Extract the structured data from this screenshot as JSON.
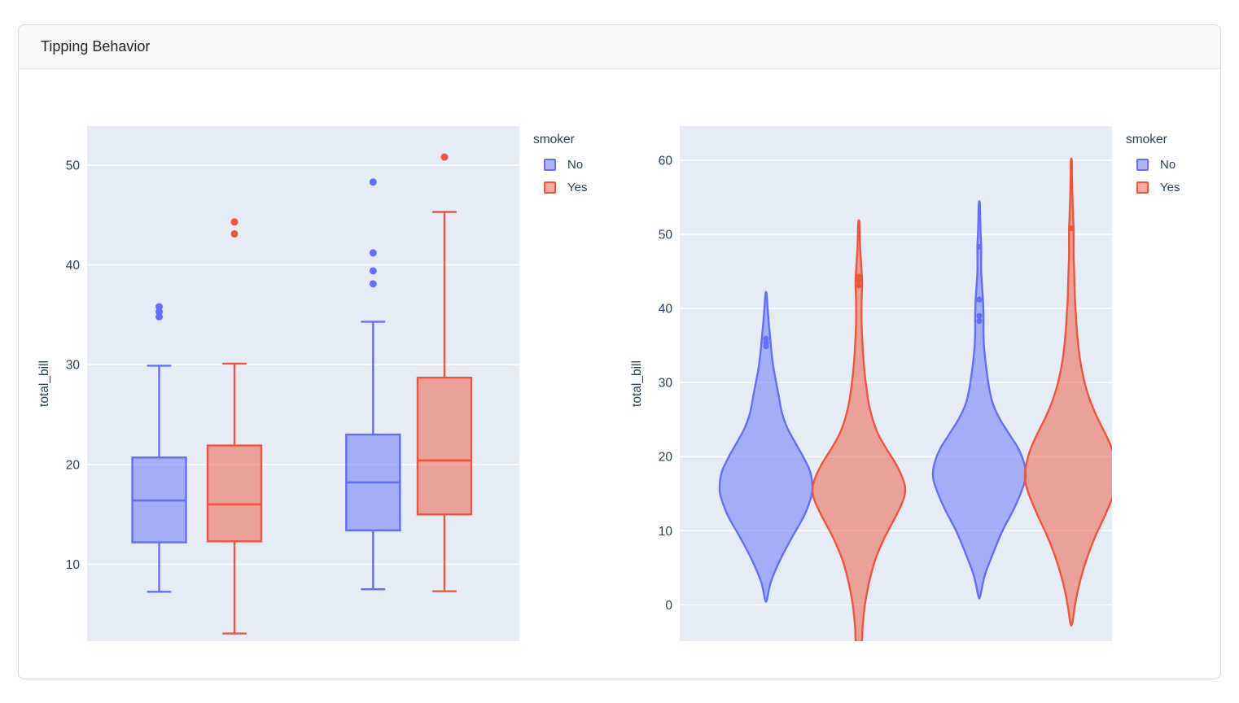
{
  "card": {
    "title": "Tipping Behavior"
  },
  "colors": {
    "plot_bg": "#e5ecf6",
    "grid": "#ffffff",
    "axis_text": "#2a3f5f",
    "no_line": "#636efa",
    "no_fill": "rgba(99,110,250,0.5)",
    "yes_line": "#ef553b",
    "yes_fill": "rgba(239,85,59,0.5)"
  },
  "chart_data": [
    {
      "type": "box",
      "ylabel": "total_bill",
      "y_ticks": [
        10,
        20,
        30,
        40,
        50
      ],
      "y_range": [
        2.3,
        53.9
      ],
      "grid": true,
      "x_tick_labels": [],
      "legend": {
        "title": "smoker",
        "position": "right-top",
        "items": [
          {
            "label": "No",
            "color": "no"
          },
          {
            "label": "Yes",
            "color": "yes"
          }
        ]
      },
      "box_width": 0.1243,
      "series": [
        {
          "name": "No",
          "group": 1,
          "color": "no",
          "x": 0.1667,
          "stats": {
            "whisker_low": 7.25,
            "q1": 12.2,
            "median": 16.4,
            "q3": 20.7,
            "whisker_high": 29.9
          },
          "outliers": [
            34.8,
            35.3,
            35.8
          ]
        },
        {
          "name": "Yes",
          "group": 1,
          "color": "yes",
          "x": 0.3409,
          "stats": {
            "whisker_low": 3.07,
            "q1": 12.3,
            "median": 16.0,
            "q3": 21.9,
            "whisker_high": 30.1
          },
          "outliers": [
            43.1,
            44.3
          ]
        },
        {
          "name": "No",
          "group": 2,
          "color": "no",
          "x": 0.6616,
          "stats": {
            "whisker_low": 7.5,
            "q1": 13.4,
            "median": 18.2,
            "q3": 23.0,
            "whisker_high": 34.3
          },
          "outliers": [
            38.1,
            39.4,
            41.2,
            48.3
          ]
        },
        {
          "name": "Yes",
          "group": 2,
          "color": "yes",
          "x": 0.8267,
          "stats": {
            "whisker_low": 7.3,
            "q1": 15.0,
            "median": 20.4,
            "q3": 28.7,
            "whisker_high": 45.3
          },
          "outliers": [
            50.8
          ]
        }
      ]
    },
    {
      "type": "violin",
      "ylabel": "total_bill",
      "y_ticks": [
        0,
        10,
        20,
        30,
        40,
        50,
        60
      ],
      "y_range": [
        -4.9,
        64.6
      ],
      "grid": true,
      "x_tick_labels": [],
      "legend": {
        "title": "smoker",
        "position": "right-top",
        "items": [
          {
            "label": "No",
            "color": "no"
          },
          {
            "label": "Yes",
            "color": "yes"
          }
        ]
      },
      "violin_halfwidth": 0.1073,
      "series": [
        {
          "name": "No",
          "group": 1,
          "color": "no",
          "x": 0.1996,
          "span": [
            0.7,
            42.0
          ],
          "points": [
            34.9,
            35.4,
            35.9
          ],
          "profile": [
            [
              0.7,
              0.02
            ],
            [
              3,
              0.1
            ],
            [
              6,
              0.3
            ],
            [
              9,
              0.55
            ],
            [
              12,
              0.82
            ],
            [
              14.5,
              0.97
            ],
            [
              16,
              1.0
            ],
            [
              18,
              0.95
            ],
            [
              20,
              0.8
            ],
            [
              22,
              0.62
            ],
            [
              24,
              0.45
            ],
            [
              26,
              0.34
            ],
            [
              28,
              0.28
            ],
            [
              30,
              0.22
            ],
            [
              32,
              0.16
            ],
            [
              34,
              0.12
            ],
            [
              36,
              0.09
            ],
            [
              38,
              0.06
            ],
            [
              40,
              0.035
            ],
            [
              42,
              0.01
            ]
          ]
        },
        {
          "name": "Yes",
          "group": 1,
          "color": "yes",
          "x": 0.4143,
          "span": [
            -4.9,
            51.7
          ],
          "points": [
            43.1,
            43.8,
            44.3
          ],
          "profile": [
            [
              -4.9,
              0.06
            ],
            [
              -3,
              0.08
            ],
            [
              0,
              0.13
            ],
            [
              3,
              0.22
            ],
            [
              6,
              0.35
            ],
            [
              9,
              0.55
            ],
            [
              12,
              0.8
            ],
            [
              14,
              0.95
            ],
            [
              15.5,
              1.0
            ],
            [
              17,
              0.95
            ],
            [
              19,
              0.8
            ],
            [
              21,
              0.6
            ],
            [
              23,
              0.42
            ],
            [
              25,
              0.3
            ],
            [
              27,
              0.22
            ],
            [
              29,
              0.17
            ],
            [
              31,
              0.13
            ],
            [
              33,
              0.1
            ],
            [
              35,
              0.08
            ],
            [
              38,
              0.06
            ],
            [
              41,
              0.06
            ],
            [
              43,
              0.07
            ],
            [
              44,
              0.07
            ],
            [
              46,
              0.05
            ],
            [
              48,
              0.03
            ],
            [
              50,
              0.02
            ],
            [
              51.7,
              0.01
            ]
          ]
        },
        {
          "name": "No",
          "group": 2,
          "color": "no",
          "x": 0.693,
          "span": [
            1.2,
            54.2
          ],
          "points": [
            38.3,
            39.0,
            41.2,
            48.3
          ],
          "profile": [
            [
              1.2,
              0.02
            ],
            [
              4,
              0.12
            ],
            [
              7,
              0.3
            ],
            [
              10,
              0.5
            ],
            [
              13,
              0.75
            ],
            [
              16,
              0.95
            ],
            [
              17.5,
              1.0
            ],
            [
              19,
              0.97
            ],
            [
              21,
              0.85
            ],
            [
              23,
              0.65
            ],
            [
              25,
              0.45
            ],
            [
              27,
              0.3
            ],
            [
              29,
              0.22
            ],
            [
              31,
              0.17
            ],
            [
              33,
              0.13
            ],
            [
              35,
              0.1
            ],
            [
              37,
              0.09
            ],
            [
              39,
              0.09
            ],
            [
              41,
              0.08
            ],
            [
              43,
              0.06
            ],
            [
              45,
              0.04
            ],
            [
              47,
              0.04
            ],
            [
              48.5,
              0.04
            ],
            [
              50,
              0.03
            ],
            [
              52,
              0.02
            ],
            [
              54.2,
              0.01
            ]
          ]
        },
        {
          "name": "Yes",
          "group": 2,
          "color": "yes",
          "x": 0.9059,
          "span": [
            -2.5,
            60.0
          ],
          "points": [
            50.8
          ],
          "profile": [
            [
              -2.5,
              0.02
            ],
            [
              0,
              0.08
            ],
            [
              3,
              0.18
            ],
            [
              6,
              0.32
            ],
            [
              9,
              0.5
            ],
            [
              12,
              0.72
            ],
            [
              15,
              0.92
            ],
            [
              17,
              1.0
            ],
            [
              19,
              0.97
            ],
            [
              21,
              0.88
            ],
            [
              23,
              0.74
            ],
            [
              25,
              0.58
            ],
            [
              27,
              0.44
            ],
            [
              29,
              0.33
            ],
            [
              31,
              0.25
            ],
            [
              33,
              0.19
            ],
            [
              35,
              0.15
            ],
            [
              37,
              0.12
            ],
            [
              39,
              0.1
            ],
            [
              41,
              0.08
            ],
            [
              43,
              0.07
            ],
            [
              45,
              0.06
            ],
            [
              47,
              0.05
            ],
            [
              49,
              0.05
            ],
            [
              50.8,
              0.05
            ],
            [
              52,
              0.04
            ],
            [
              54,
              0.03
            ],
            [
              56,
              0.02
            ],
            [
              58,
              0.015
            ],
            [
              60,
              0.01
            ]
          ]
        }
      ]
    }
  ]
}
